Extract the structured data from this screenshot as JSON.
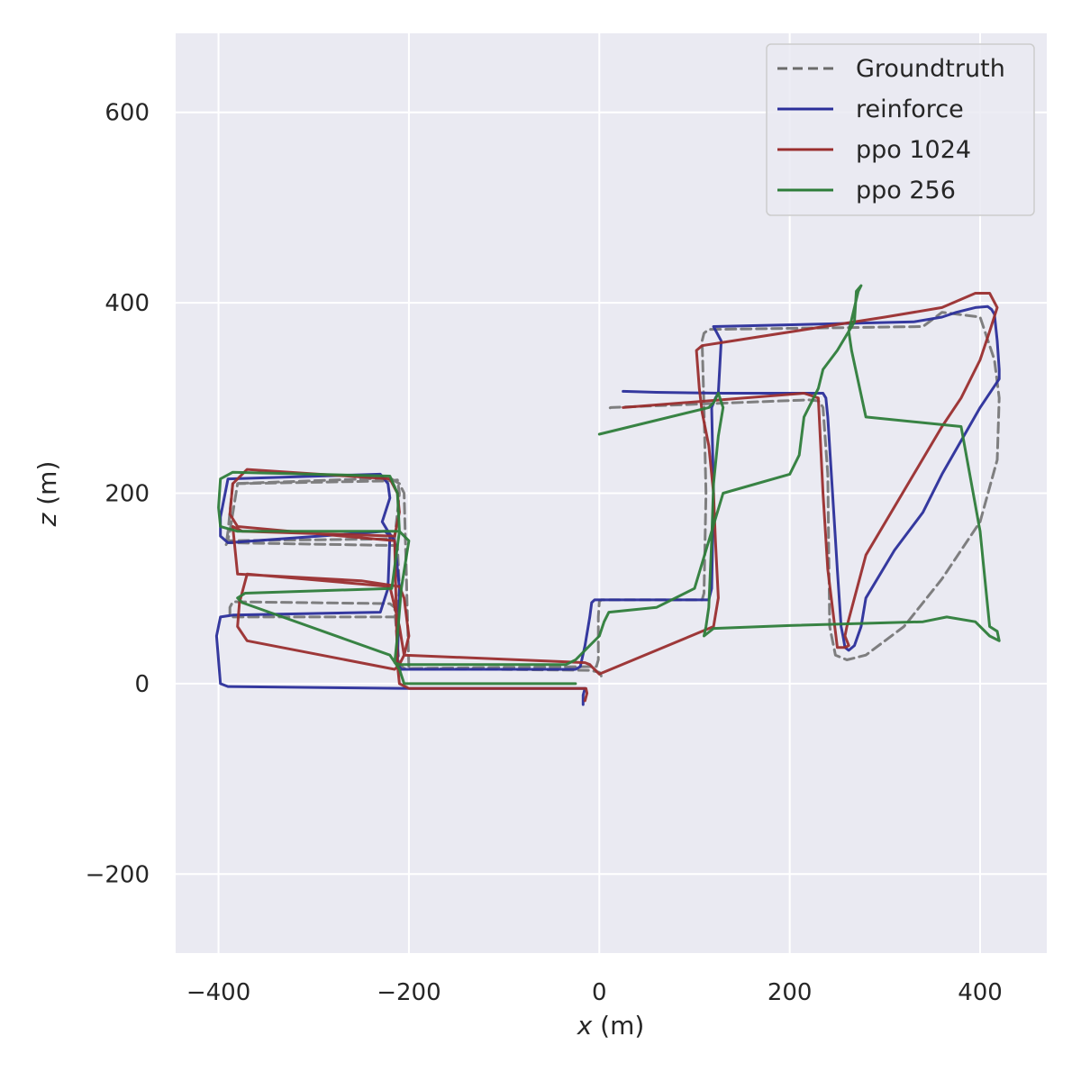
{
  "chart_data": {
    "type": "line",
    "xlabel": {
      "var": "x",
      "unit": " (m)"
    },
    "ylabel": {
      "var": "z",
      "unit": " (m)"
    },
    "xlim": [
      -445,
      470
    ],
    "ylim": [
      -283,
      683
    ],
    "xticks": [
      -400,
      -200,
      0,
      200,
      400
    ],
    "yticks": [
      -200,
      0,
      200,
      400,
      600
    ],
    "xtick_labels": [
      "−400",
      "−200",
      "0",
      "200",
      "400"
    ],
    "ytick_labels": [
      "−200",
      "0",
      "200",
      "400",
      "600"
    ],
    "grid": true,
    "legend_position": "top-right",
    "series": [
      {
        "name": "Groundtruth",
        "color": "#6b6b6b",
        "dashed": true,
        "x": [
          2,
          0,
          -10,
          -205,
          -210,
          -212,
          -215,
          -220,
          -385,
          -388,
          -388,
          -385,
          -215,
          -212,
          -210,
          -212,
          -388,
          -390,
          -388,
          -380,
          -220,
          -212,
          -210,
          -215,
          -390,
          -392,
          -390,
          -385,
          -220,
          -210,
          -205,
          -200,
          -3,
          -1,
          -1,
          0,
          2,
          108,
          110,
          112,
          110,
          108,
          110,
          115,
          340,
          360,
          400,
          415,
          420,
          418,
          400,
          360,
          320,
          280,
          260,
          248,
          242,
          240,
          235,
          232,
          230,
          220,
          140,
          12,
          8
        ],
        "y": [
          8,
          12,
          14,
          16,
          20,
          40,
          80,
          84,
          86,
          80,
          72,
          70,
          70,
          75,
          100,
          145,
          148,
          152,
          160,
          210,
          213,
          214,
          200,
          152,
          150,
          146,
          160,
          210,
          216,
          210,
          200,
          16,
          18,
          25,
          70,
          86,
          88,
          88,
          95,
          200,
          290,
          360,
          368,
          372,
          375,
          390,
          385,
          340,
          300,
          235,
          170,
          110,
          60,
          30,
          25,
          30,
          60,
          220,
          290,
          295,
          297,
          298,
          295,
          290,
          288
        ]
      },
      {
        "name": "reinforce",
        "color": "#2b2f9a",
        "dashed": false,
        "x": [
          -17,
          -17,
          -15,
          -200,
          -390,
          -398,
          -402,
          -398,
          -385,
          -230,
          -222,
          -220,
          -225,
          -390,
          -398,
          -398,
          -390,
          -230,
          -222,
          -220,
          -228,
          -222,
          -215,
          -210,
          -212,
          -208,
          -25,
          -20,
          -15,
          -10,
          -8,
          -5,
          115,
          118,
          120,
          118,
          122,
          125,
          128,
          120,
          330,
          360,
          375,
          395,
          408,
          412,
          415,
          418,
          420,
          420,
          400,
          360,
          340,
          310,
          280,
          275,
          268,
          262,
          258,
          256,
          254,
          250,
          245,
          240,
          238,
          235,
          130,
          60,
          25
        ],
        "y": [
          -22,
          -12,
          -5,
          -5,
          -3,
          0,
          50,
          70,
          72,
          75,
          100,
          155,
          160,
          148,
          155,
          175,
          215,
          220,
          210,
          195,
          170,
          160,
          150,
          100,
          20,
          15,
          15,
          18,
          40,
          70,
          85,
          88,
          88,
          100,
          200,
          290,
          300,
          305,
          360,
          375,
          380,
          385,
          390,
          395,
          396,
          393,
          388,
          360,
          330,
          320,
          290,
          220,
          180,
          140,
          90,
          60,
          40,
          35,
          38,
          50,
          60,
          120,
          200,
          280,
          300,
          305,
          305,
          306,
          307
        ]
      },
      {
        "name": "ppo 1024",
        "color": "#9a2e2e",
        "dashed": false,
        "x": [
          -15,
          -13,
          -14,
          -200,
          -210,
          -212,
          -215,
          -380,
          -388,
          -385,
          -370,
          -220,
          -212,
          -210,
          -215,
          -375,
          -385,
          -380,
          -250,
          -210,
          -205,
          -200,
          -205,
          -210,
          -215,
          -370,
          -380,
          -378,
          -370,
          -220,
          -210,
          -205,
          -15,
          -10,
          -8,
          -5,
          0,
          120,
          125,
          122,
          120,
          115,
          108,
          105,
          102,
          108,
          300,
          360,
          395,
          410,
          418,
          410,
          400,
          380,
          360,
          280,
          260,
          258,
          262,
          258,
          250,
          240,
          235,
          230,
          215,
          25
        ],
        "y": [
          -18,
          -10,
          -5,
          -5,
          0,
          20,
          150,
          165,
          178,
          210,
          225,
          215,
          200,
          180,
          155,
          160,
          165,
          115,
          108,
          102,
          90,
          50,
          30,
          20,
          15,
          45,
          60,
          85,
          115,
          102,
          60,
          30,
          22,
          20,
          18,
          15,
          10,
          60,
          90,
          150,
          200,
          250,
          285,
          310,
          350,
          355,
          385,
          395,
          410,
          410,
          395,
          370,
          340,
          300,
          270,
          135,
          60,
          50,
          40,
          38,
          38,
          120,
          200,
          300,
          305,
          290
        ]
      },
      {
        "name": "ppo 256",
        "color": "#2e7d3a",
        "dashed": false,
        "x": [
          0,
          115,
          120,
          125,
          130,
          125,
          120,
          118,
          115,
          112,
          110,
          120,
          200,
          340,
          365,
          395,
          410,
          420,
          418,
          410,
          400,
          380,
          280,
          265,
          262,
          268,
          272,
          275,
          270,
          268,
          250,
          235,
          230,
          225,
          215,
          210,
          200,
          130,
          100,
          60,
          10,
          5,
          0,
          -10,
          -25,
          -35,
          -210,
          -215,
          -212,
          -208,
          -200,
          -205,
          -210,
          -380,
          -398,
          -400,
          -398,
          -385,
          -220,
          -212,
          -210,
          -218,
          -372,
          -380,
          -375,
          -220,
          -210,
          -205,
          -25
        ],
        "y": [
          262,
          290,
          295,
          305,
          290,
          260,
          210,
          150,
          80,
          60,
          50,
          58,
          61,
          65,
          70,
          65,
          50,
          45,
          55,
          60,
          160,
          270,
          280,
          350,
          370,
          395,
          412,
          418,
          412,
          380,
          350,
          330,
          310,
          300,
          280,
          240,
          220,
          200,
          100,
          80,
          75,
          65,
          50,
          40,
          25,
          20,
          20,
          22,
          50,
          100,
          150,
          155,
          160,
          160,
          165,
          185,
          215,
          222,
          218,
          200,
          160,
          100,
          95,
          90,
          85,
          30,
          15,
          0,
          0
        ]
      }
    ]
  }
}
